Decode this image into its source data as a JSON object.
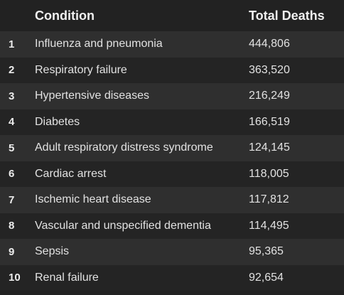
{
  "table": {
    "headers": {
      "rank": "",
      "condition": "Condition",
      "deaths": "Total Deaths"
    },
    "rows": [
      {
        "rank": "1",
        "condition": "Influenza and pneumonia",
        "deaths": "444,806"
      },
      {
        "rank": "2",
        "condition": "Respiratory failure",
        "deaths": "363,520"
      },
      {
        "rank": "3",
        "condition": "Hypertensive diseases",
        "deaths": "216,249"
      },
      {
        "rank": "4",
        "condition": "Diabetes",
        "deaths": "166,519"
      },
      {
        "rank": "5",
        "condition": "Adult respiratory distress syndrome",
        "deaths": "124,145"
      },
      {
        "rank": "6",
        "condition": "Cardiac arrest",
        "deaths": "118,005"
      },
      {
        "rank": "7",
        "condition": "Ischemic heart disease",
        "deaths": "117,812"
      },
      {
        "rank": "8",
        "condition": "Vascular and unspecified dementia",
        "deaths": "114,495"
      },
      {
        "rank": "9",
        "condition": "Sepsis",
        "deaths": "95,365"
      },
      {
        "rank": "10",
        "condition": "Renal failure",
        "deaths": "92,654"
      }
    ]
  },
  "colors": {
    "background": "#222222",
    "row_stripe": "#2f2f2f",
    "text": "#e6e6e6"
  }
}
